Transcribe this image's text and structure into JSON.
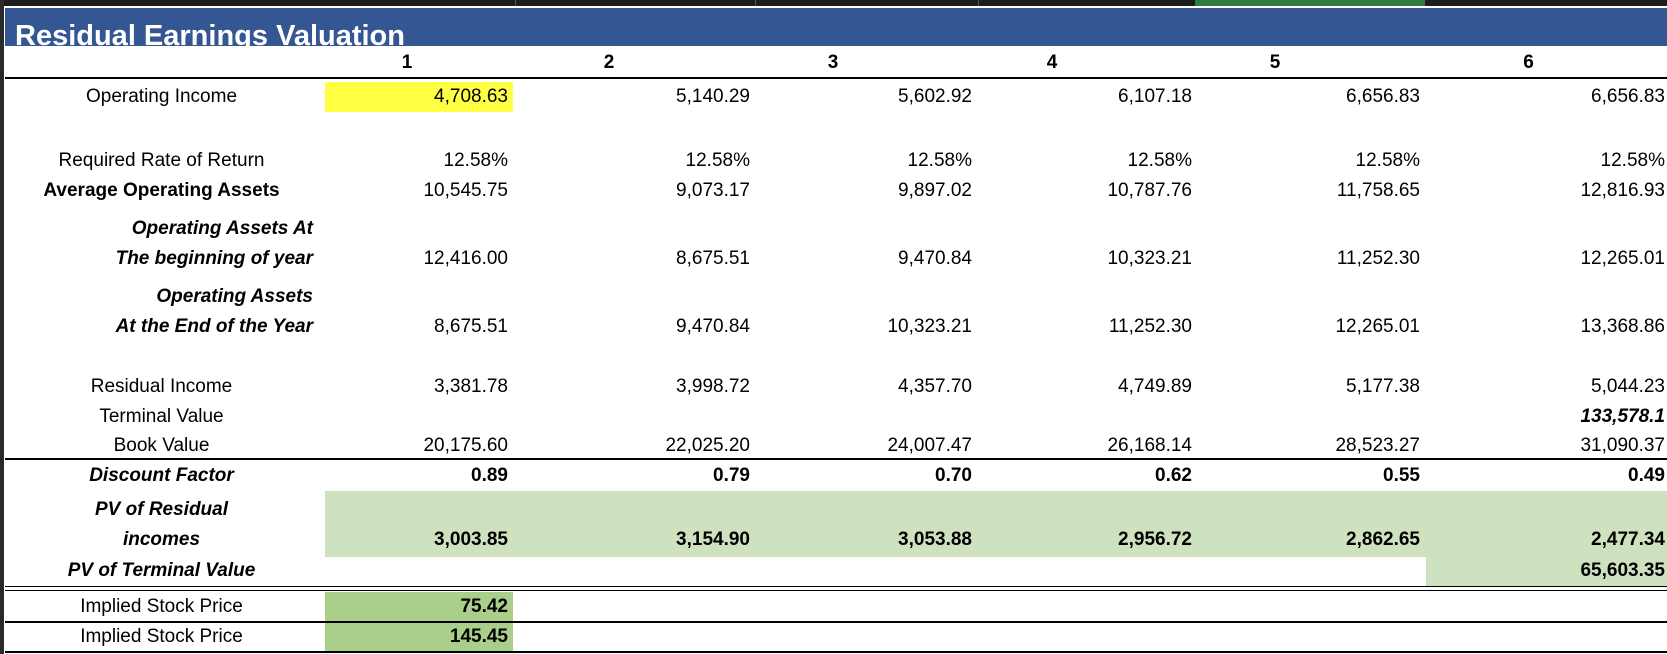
{
  "title": "Residual Earnings Valuation",
  "years": [
    "1",
    "2",
    "3",
    "4",
    "5",
    "6"
  ],
  "operating_income": {
    "label": "Operating Income",
    "values": [
      "4,708.63",
      "5,140.29",
      "5,602.92",
      "6,107.18",
      "6,656.83",
      "6,656.83"
    ]
  },
  "required_rate": {
    "label": "Required Rate of Return",
    "values": [
      "12.58%",
      "12.58%",
      "12.58%",
      "12.58%",
      "12.58%",
      "12.58%"
    ]
  },
  "avg_assets": {
    "label": "Average Operating Assets",
    "values": [
      "10,545.75",
      "9,073.17",
      "9,897.02",
      "10,787.76",
      "11,758.65",
      "12,816.93"
    ]
  },
  "assets_begin": {
    "label_line1": "Operating Assets At",
    "label_line2": "The beginning of year",
    "values": [
      "12,416.00",
      "8,675.51",
      "9,470.84",
      "10,323.21",
      "11,252.30",
      "12,265.01"
    ]
  },
  "assets_end": {
    "label_line1": "Operating Assets",
    "label_line2": "At the End of the Year",
    "values": [
      "8,675.51",
      "9,470.84",
      "10,323.21",
      "11,252.30",
      "12,265.01",
      "13,368.86"
    ]
  },
  "residual_income": {
    "label": "Residual Income",
    "values": [
      "3,381.78",
      "3,998.72",
      "4,357.70",
      "4,749.89",
      "5,177.38",
      "5,044.23"
    ]
  },
  "terminal_value": {
    "label": "Terminal Value",
    "value": "133,578.1"
  },
  "book_value": {
    "label": "Book Value",
    "values": [
      "20,175.60",
      "22,025.20",
      "24,007.47",
      "26,168.14",
      "28,523.27",
      "31,090.37"
    ]
  },
  "discount_factor": {
    "label": "Discount Factor",
    "values": [
      "0.89",
      "0.79",
      "0.70",
      "0.62",
      "0.55",
      "0.49"
    ]
  },
  "pv_residual": {
    "label_line1": "PV of Residual",
    "label_line2": "incomes",
    "values": [
      "3,003.85",
      "3,154.90",
      "3,053.88",
      "2,956.72",
      "2,862.65",
      "2,477.34"
    ]
  },
  "pv_terminal": {
    "label": "PV of Terminal Value",
    "value": "65,603.35"
  },
  "implied_price_1": {
    "label": "Implied Stock Price",
    "value": "75.42"
  },
  "implied_price_2": {
    "label": "Implied Stock Price",
    "value": "145.45"
  },
  "colors": {
    "title_bg": "#345793",
    "highlight_yellow": "#ffff44",
    "green_light": "#cfe2bf",
    "green_dark": "#a9cf8b"
  }
}
